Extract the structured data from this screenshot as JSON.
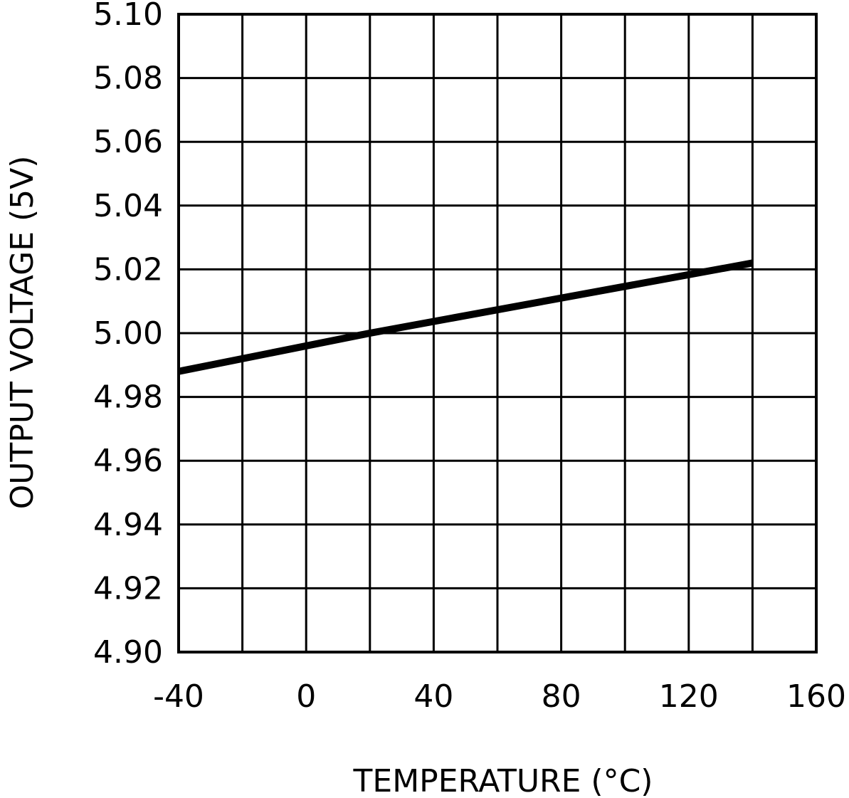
{
  "chart_data": {
    "type": "line",
    "title": "",
    "xlabel": "TEMPERATURE (°C)",
    "ylabel": "OUTPUT VOLTAGE (5V)",
    "xlim": [
      -40,
      160
    ],
    "ylim": [
      4.9,
      5.1
    ],
    "x_ticks": [
      "-40",
      "0",
      "40",
      "80",
      "120",
      "160"
    ],
    "x_tick_values": [
      -40,
      0,
      40,
      80,
      120,
      160
    ],
    "y_ticks": [
      "4.90",
      "4.92",
      "4.94",
      "4.96",
      "4.98",
      "5.00",
      "5.02",
      "5.04",
      "5.06",
      "5.08",
      "5.10"
    ],
    "y_tick_values": [
      4.9,
      4.92,
      4.94,
      4.96,
      4.98,
      5.0,
      5.02,
      5.04,
      5.06,
      5.08,
      5.1
    ],
    "x_gridlines": [
      -40,
      -20,
      0,
      20,
      40,
      60,
      80,
      100,
      120,
      140,
      160
    ],
    "y_gridlines": [
      4.9,
      4.92,
      4.94,
      4.96,
      4.98,
      5.0,
      5.02,
      5.04,
      5.06,
      5.08,
      5.1
    ],
    "grid": true,
    "series": [
      {
        "x": [
          -40,
          20,
          140
        ],
        "values": [
          4.988,
          5.0,
          5.022
        ],
        "color": "#000000"
      }
    ]
  }
}
